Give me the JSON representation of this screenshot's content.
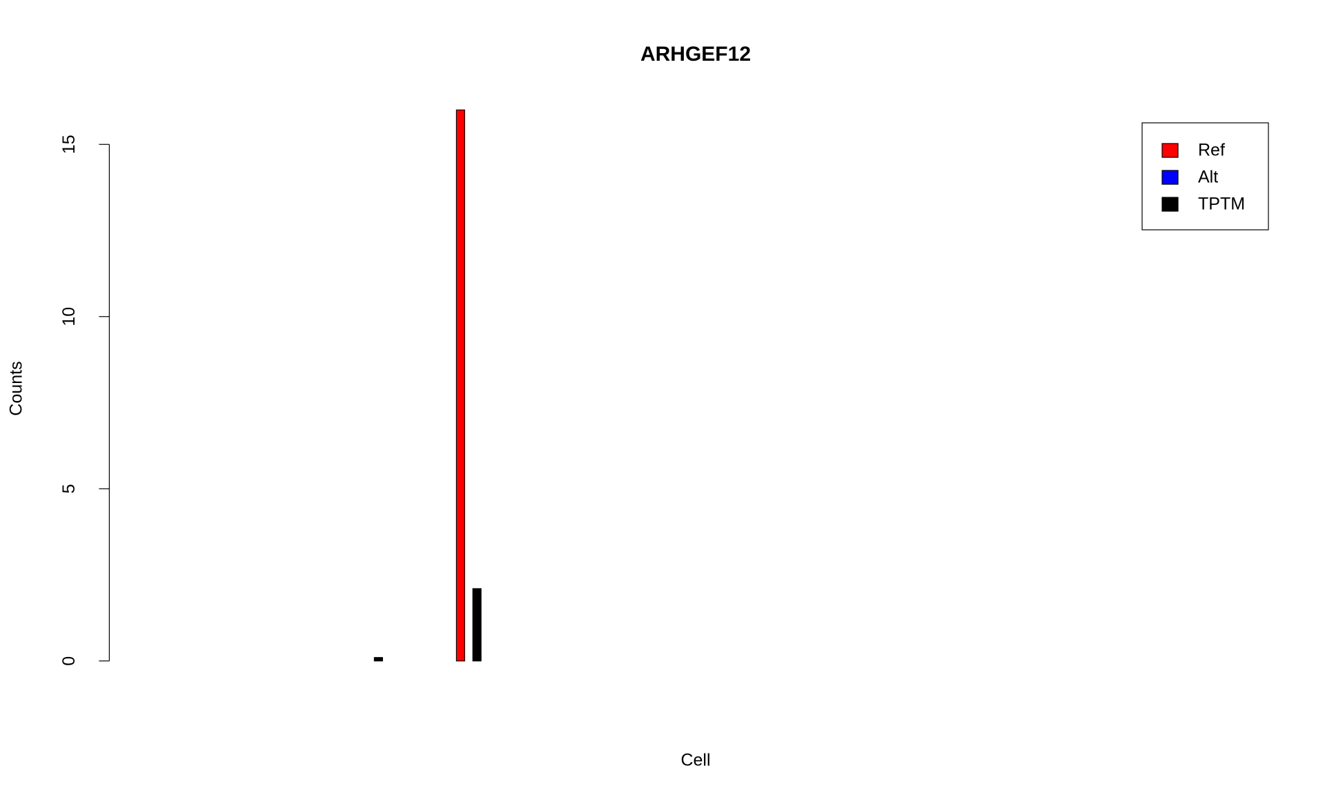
{
  "chart_data": {
    "type": "bar",
    "title": "ARHGEF12",
    "x_label": "Cell",
    "y_label": "Counts",
    "categories": [
      null,
      null,
      null,
      null,
      null,
      null,
      null,
      null,
      null,
      null,
      null,
      null,
      null,
      null,
      null,
      null,
      null,
      null,
      null,
      null,
      null,
      null,
      null,
      null,
      null,
      null,
      null,
      null,
      null,
      null,
      null,
      null,
      null
    ],
    "series": [
      {
        "name": "Ref",
        "color": "#ff0000",
        "values": [
          null,
          null,
          null,
          null,
          null,
          null,
          0,
          null,
          null,
          16,
          null,
          null,
          null,
          null,
          null,
          null,
          null,
          null,
          null,
          null,
          null,
          null,
          null,
          null,
          null,
          null,
          null,
          null,
          null,
          null,
          null,
          null,
          null
        ]
      },
      {
        "name": "Alt",
        "color": "#0000ff",
        "values": [
          null,
          null,
          null,
          null,
          null,
          null,
          0,
          null,
          null,
          0,
          null,
          null,
          null,
          null,
          null,
          null,
          null,
          null,
          null,
          null,
          null,
          null,
          null,
          null,
          null,
          null,
          null,
          null,
          null,
          null,
          null,
          null,
          null
        ]
      },
      {
        "name": "TPTM",
        "color": "#000000",
        "values": [
          null,
          null,
          null,
          null,
          null,
          null,
          0.1,
          null,
          null,
          2.1,
          null,
          null,
          null,
          null,
          null,
          null,
          null,
          null,
          null,
          null,
          null,
          null,
          null,
          null,
          null,
          null,
          null,
          null,
          null,
          null,
          null,
          null,
          null
        ]
      }
    ],
    "ylim": [
      -0.64,
      16.64
    ],
    "yticks": [
      0,
      5,
      10,
      15
    ],
    "legend": "topright"
  }
}
